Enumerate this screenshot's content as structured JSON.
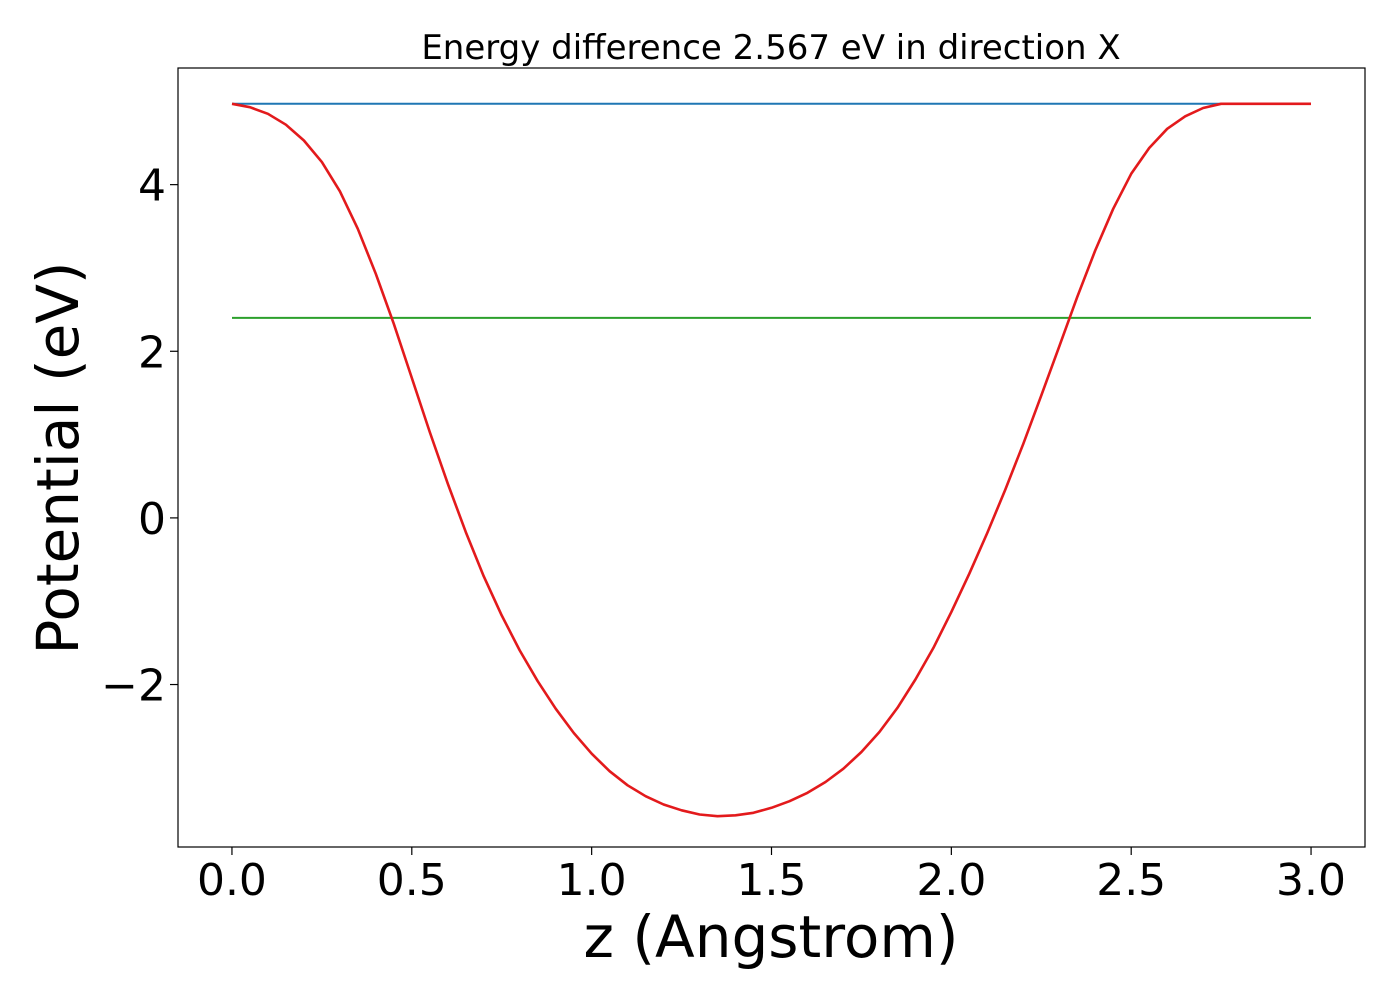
{
  "chart_data": {
    "type": "line",
    "title": "Energy difference 2.567 eV in direction X",
    "xlabel": "z (Angstrom)",
    "ylabel": "Potential (eV)",
    "xlim": [
      -0.15,
      3.15
    ],
    "ylim": [
      -3.95,
      5.4
    ],
    "grid": false,
    "x_ticks": [
      {
        "value": 0.0,
        "label": "0.0"
      },
      {
        "value": 0.5,
        "label": "0.5"
      },
      {
        "value": 1.0,
        "label": "1.0"
      },
      {
        "value": 1.5,
        "label": "1.5"
      },
      {
        "value": 2.0,
        "label": "2.0"
      },
      {
        "value": 2.5,
        "label": "2.5"
      },
      {
        "value": 3.0,
        "label": "3.0"
      }
    ],
    "y_ticks": [
      {
        "value": -2,
        "label": "−2"
      },
      {
        "value": 0,
        "label": "0"
      },
      {
        "value": 2,
        "label": "2"
      },
      {
        "value": 4,
        "label": "4"
      }
    ],
    "series": [
      {
        "color": "#1f77b4",
        "x": [
          0.0,
          3.0
        ],
        "y": [
          4.97,
          4.97
        ]
      },
      {
        "color": "#2ca02c",
        "x": [
          0.0,
          3.0
        ],
        "y": [
          2.4,
          2.4
        ]
      },
      {
        "color": "#e31a1c",
        "x": [
          0.0,
          0.05,
          0.1,
          0.15,
          0.2,
          0.25,
          0.3,
          0.35,
          0.4,
          0.45,
          0.5,
          0.55,
          0.6,
          0.65,
          0.7,
          0.75,
          0.8,
          0.85,
          0.9,
          0.95,
          1.0,
          1.05,
          1.1,
          1.15,
          1.2,
          1.25,
          1.3,
          1.35,
          1.4,
          1.45,
          1.5,
          1.55,
          1.6,
          1.65,
          1.7,
          1.75,
          1.8,
          1.85,
          1.9,
          1.95,
          2.0,
          2.05,
          2.1,
          2.15,
          2.2,
          2.25,
          2.3,
          2.35,
          2.4,
          2.45,
          2.5,
          2.55,
          2.6,
          2.65,
          2.7,
          2.75,
          2.8,
          2.85,
          2.9,
          2.95,
          3.0
        ],
        "y": [
          4.97,
          4.93,
          4.85,
          4.72,
          4.53,
          4.27,
          3.92,
          3.47,
          2.93,
          2.33,
          1.68,
          1.03,
          0.41,
          -0.17,
          -0.7,
          -1.17,
          -1.59,
          -1.96,
          -2.29,
          -2.58,
          -2.83,
          -3.04,
          -3.21,
          -3.34,
          -3.44,
          -3.51,
          -3.56,
          -3.58,
          -3.57,
          -3.54,
          -3.48,
          -3.4,
          -3.3,
          -3.17,
          -3.01,
          -2.81,
          -2.57,
          -2.28,
          -1.94,
          -1.56,
          -1.13,
          -0.67,
          -0.18,
          0.34,
          0.89,
          1.47,
          2.06,
          2.65,
          3.21,
          3.71,
          4.13,
          4.44,
          4.67,
          4.82,
          4.92,
          4.97,
          4.97,
          4.97,
          4.97,
          4.97,
          4.97
        ]
      }
    ]
  }
}
